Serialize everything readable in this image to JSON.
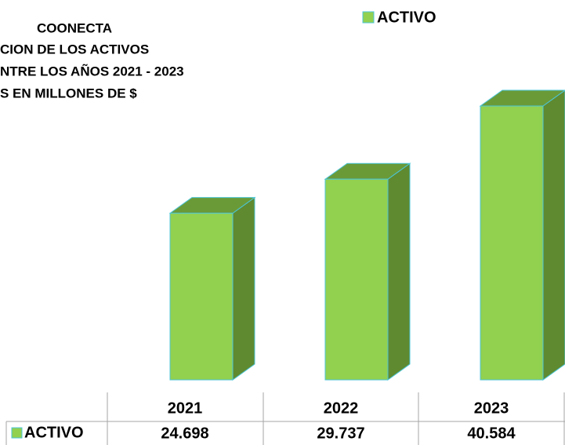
{
  "chart_data": {
    "type": "bar3d",
    "title": [
      "COONECTA",
      "CION DE LOS ACTIVOS",
      "NTRE LOS AÑOS 2021 - 2023",
      "S EN MILLONES DE $"
    ],
    "categories": [
      "2021",
      "2022",
      "2023"
    ],
    "series": [
      {
        "name": "ACTIVO",
        "color": "#92d050",
        "values": [
          24698,
          29737,
          40584
        ],
        "value_labels": [
          "24.698",
          "29.737",
          "40.584"
        ]
      }
    ],
    "legend": "top"
  }
}
